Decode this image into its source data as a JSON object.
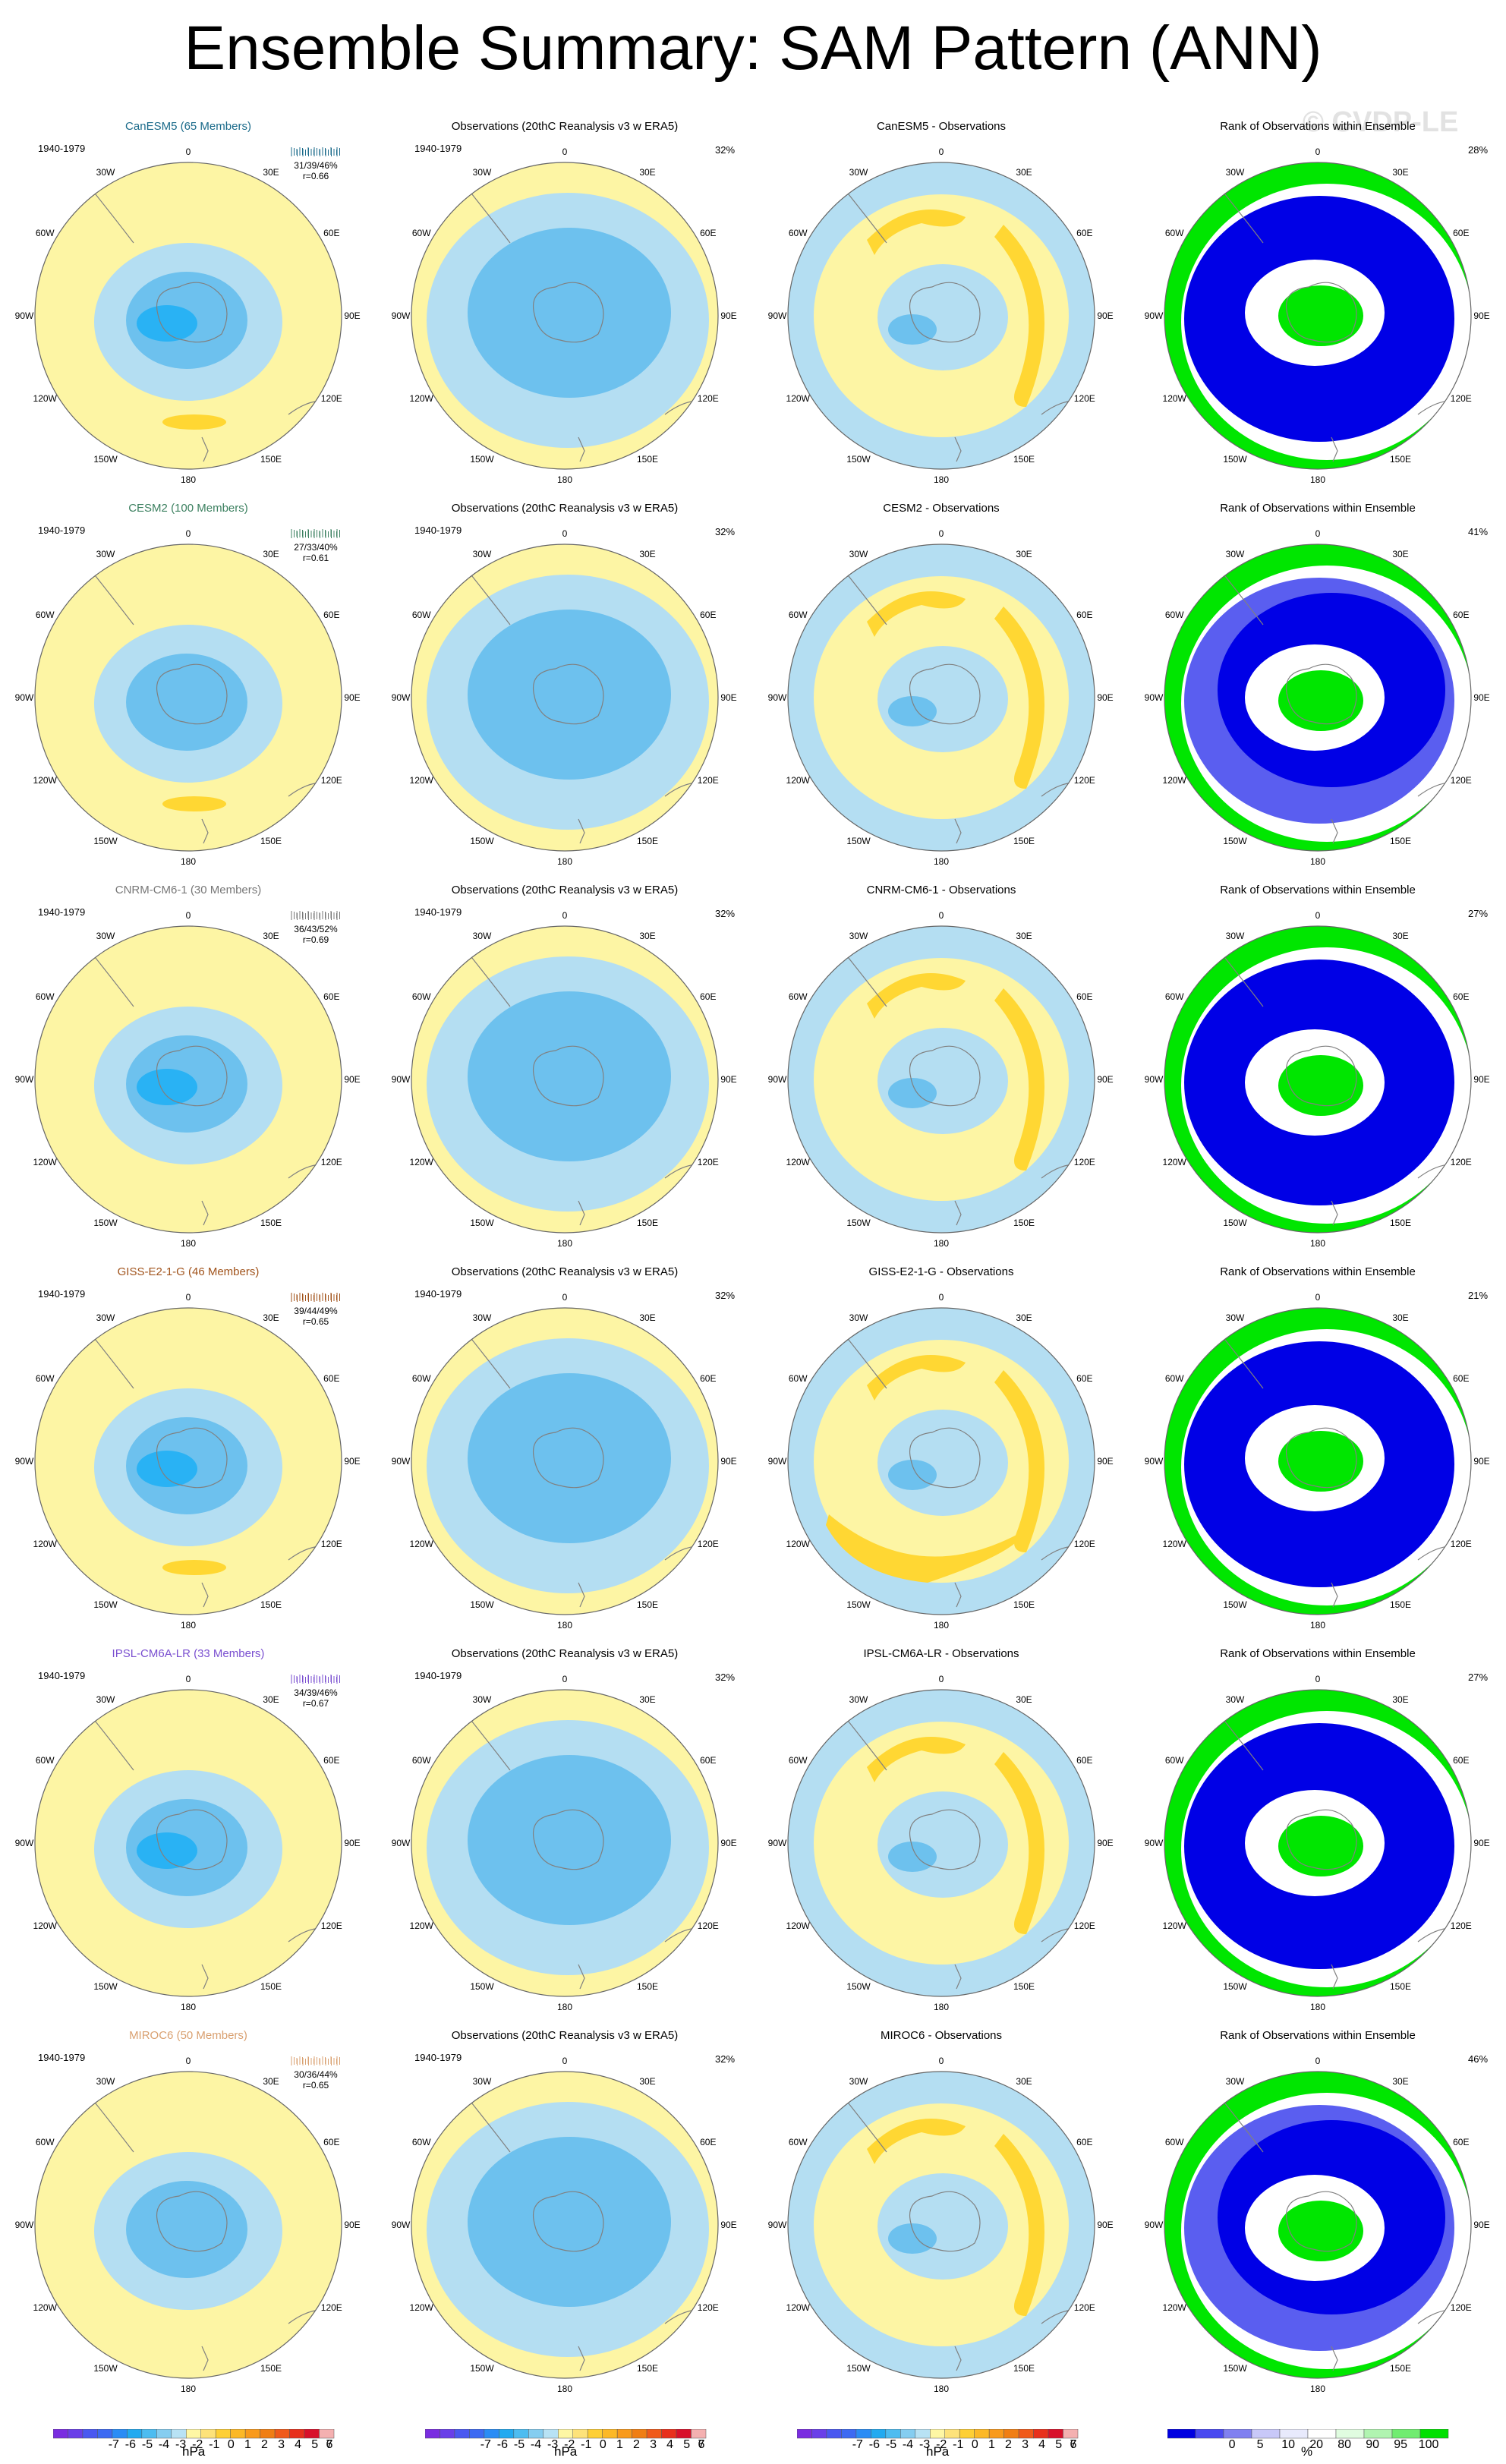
{
  "title": "Ensemble Summary: SAM Pattern (ANN)",
  "watermark": "© CVDP-LE",
  "period": "1940-1979",
  "obs_title": "Observations (20thC Reanalysis v3 w ERA5)",
  "obs_pct": "32%",
  "rank_title": "Rank of Observations within Ensemble",
  "longitude_labels": [
    "0",
    "30E",
    "60E",
    "90E",
    "120E",
    "150E",
    "180",
    "150W",
    "120W",
    "90W",
    "60W",
    "30W"
  ],
  "models": [
    {
      "title": "CanESM5 (65 Members)",
      "title_color": "#1a6a8a",
      "stats_line1": "31/39/46%",
      "stats_line2": "r=0.66",
      "diff_title": "CanESM5 - Observations",
      "rank_pct": "28%"
    },
    {
      "title": "CESM2 (100 Members)",
      "title_color": "#3c8060",
      "stats_line1": "27/33/40%",
      "stats_line2": "r=0.61",
      "diff_title": "CESM2 - Observations",
      "rank_pct": "41%"
    },
    {
      "title": "CNRM-CM6-1 (30 Members)",
      "title_color": "#777777",
      "stats_line1": "36/43/52%",
      "stats_line2": "r=0.69",
      "diff_title": "CNRM-CM6-1 - Observations",
      "rank_pct": "27%"
    },
    {
      "title": "GISS-E2-1-G (46 Members)",
      "title_color": "#a0521a",
      "stats_line1": "39/44/49%",
      "stats_line2": "r=0.65",
      "diff_title": "GISS-E2-1-G - Observations",
      "rank_pct": "21%"
    },
    {
      "title": "IPSL-CM6A-LR (33 Members)",
      "title_color": "#7a4fd0",
      "stats_line1": "34/39/46%",
      "stats_line2": "r=0.67",
      "diff_title": "IPSL-CM6A-LR - Observations",
      "rank_pct": "27%"
    },
    {
      "title": "MIROC6 (50 Members)",
      "title_color": "#d9a070",
      "stats_line1": "30/36/44%",
      "stats_line2": "r=0.65",
      "diff_title": "MIROC6 - Observations",
      "rank_pct": "46%"
    }
  ],
  "hpa_colorbar": {
    "unit": "hPa",
    "tick_labels": [
      "-7",
      "-6",
      "-5",
      "-4",
      "-3",
      "-2",
      "-1",
      "0",
      "1",
      "2",
      "3",
      "4",
      "5",
      "6",
      "7"
    ],
    "colors": [
      "#7a2de0",
      "#6a3fe8",
      "#4a58f0",
      "#3d6af2",
      "#2a8cf5",
      "#22aaf0",
      "#4dbcf0",
      "#85cdf0",
      "#b8e2f4",
      "#fef7a4",
      "#fde27a",
      "#fecf35",
      "#fcb827",
      "#f99a1c",
      "#f07e14",
      "#f05a1a",
      "#e8301c",
      "#d8102a",
      "#f4b0b0"
    ]
  },
  "rank_colorbar": {
    "unit": "%",
    "tick_labels": [
      "0",
      "5",
      "10",
      "20",
      "80",
      "90",
      "95",
      "100"
    ],
    "colors": [
      "#0000e0",
      "#4a4af0",
      "#8080f0",
      "#c8c8f8",
      "#e8eafc",
      "#ffffff",
      "#e0fce0",
      "#b0f4b0",
      "#70ec70",
      "#00e000"
    ]
  },
  "palette": {
    "negative_light": "#b4def2",
    "negative_mid": "#6dc1ee",
    "negative_strong": "#29b2f4",
    "positive_light": "#fdf5a4",
    "positive_mid": "#ffd733",
    "coast": "#808080",
    "rank_blue": "#0000e6",
    "rank_green": "#00e600",
    "rank_midblue": "#5a5ef0"
  }
}
